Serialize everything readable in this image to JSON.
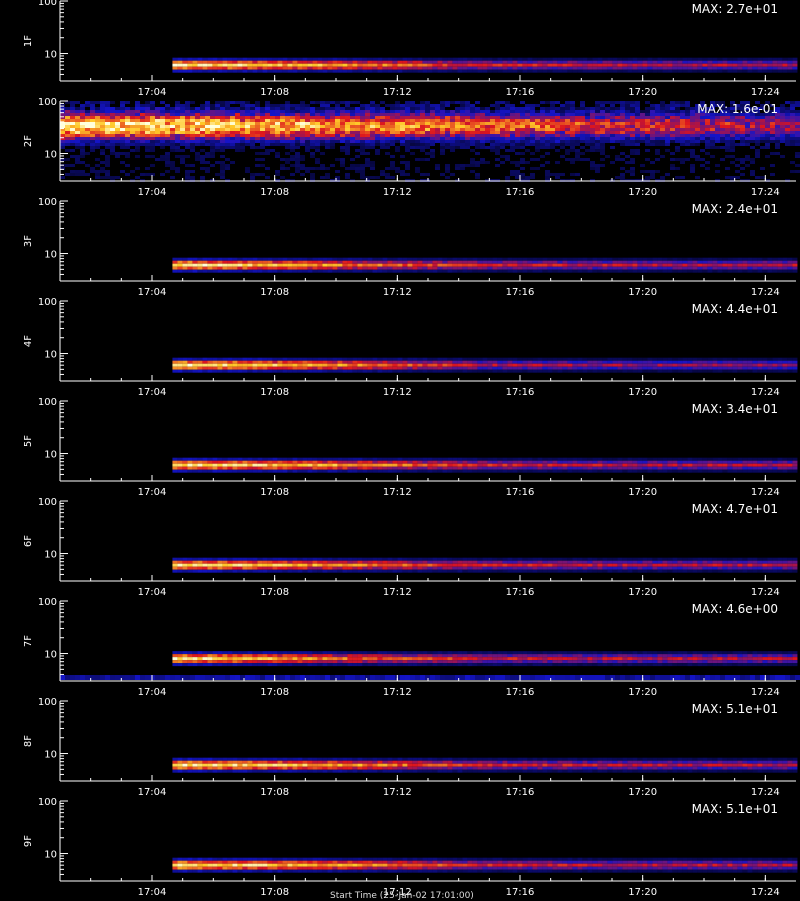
{
  "figure": {
    "footer_text": "Start Time (25-Jan-02 17:01:00)"
  },
  "chart_data": [
    {
      "type": "heatmap",
      "panel_label": "1F",
      "max_label": "MAX: 2.7e+01",
      "y_ticks": [
        "100",
        "10"
      ],
      "x_ticks": [
        "17:04",
        "17:08",
        "17:12",
        "17:16",
        "17:20",
        "17:24"
      ],
      "xlim": [
        "17:01",
        "17:25"
      ],
      "ylim": [
        3,
        100
      ],
      "y_scale": "log",
      "signal": {
        "start": "17:04:40",
        "band_center": 6,
        "intensity": [
          1.0,
          0.8,
          0.55,
          0.5
        ]
      }
    },
    {
      "type": "heatmap",
      "panel_label": "2F",
      "max_label": "MAX: 1.6e-01",
      "y_ticks": [
        "100",
        "10"
      ],
      "x_ticks": [
        "17:04",
        "17:08",
        "17:12",
        "17:16",
        "17:20",
        "17:24"
      ],
      "xlim": [
        "17:01",
        "17:25"
      ],
      "ylim": [
        3,
        100
      ],
      "y_scale": "log",
      "signal": {
        "start": "17:01:00",
        "band_center": 35,
        "intensity": [
          1.0,
          0.6,
          0.45,
          0.4
        ]
      }
    },
    {
      "type": "heatmap",
      "panel_label": "3F",
      "max_label": "MAX: 2.4e+01",
      "y_ticks": [
        "100",
        "10"
      ],
      "x_ticks": [
        "17:04",
        "17:08",
        "17:12",
        "17:16",
        "17:20",
        "17:24"
      ],
      "xlim": [
        "17:01",
        "17:25"
      ],
      "ylim": [
        3,
        100
      ],
      "y_scale": "log",
      "signal": {
        "start": "17:04:40",
        "band_center": 6,
        "intensity": [
          1.0,
          0.75,
          0.55,
          0.5
        ]
      }
    },
    {
      "type": "heatmap",
      "panel_label": "4F",
      "max_label": "MAX: 4.4e+01",
      "y_ticks": [
        "100",
        "10"
      ],
      "x_ticks": [
        "17:04",
        "17:08",
        "17:12",
        "17:16",
        "17:20",
        "17:24"
      ],
      "xlim": [
        "17:01",
        "17:25"
      ],
      "ylim": [
        3,
        100
      ],
      "y_scale": "log",
      "signal": {
        "start": "17:04:40",
        "band_center": 6,
        "intensity": [
          1.0,
          0.8,
          0.5,
          0.45
        ]
      }
    },
    {
      "type": "heatmap",
      "panel_label": "5F",
      "max_label": "MAX: 3.4e+01",
      "y_ticks": [
        "100",
        "10"
      ],
      "x_ticks": [
        "17:04",
        "17:08",
        "17:12",
        "17:16",
        "17:20",
        "17:24"
      ],
      "xlim": [
        "17:01",
        "17:25"
      ],
      "ylim": [
        3,
        100
      ],
      "y_scale": "log",
      "signal": {
        "start": "17:04:40",
        "band_center": 6,
        "intensity": [
          1.0,
          0.8,
          0.55,
          0.5
        ]
      }
    },
    {
      "type": "heatmap",
      "panel_label": "6F",
      "max_label": "MAX: 4.7e+01",
      "y_ticks": [
        "100",
        "10"
      ],
      "x_ticks": [
        "17:04",
        "17:08",
        "17:12",
        "17:16",
        "17:20",
        "17:24"
      ],
      "xlim": [
        "17:01",
        "17:25"
      ],
      "ylim": [
        3,
        100
      ],
      "y_scale": "log",
      "signal": {
        "start": "17:04:40",
        "band_center": 6,
        "intensity": [
          1.0,
          0.75,
          0.55,
          0.5
        ]
      }
    },
    {
      "type": "heatmap",
      "panel_label": "7F",
      "max_label": "MAX: 4.6e+00",
      "y_ticks": [
        "100",
        "10"
      ],
      "x_ticks": [
        "17:04",
        "17:08",
        "17:12",
        "17:16",
        "17:20",
        "17:24"
      ],
      "xlim": [
        "17:01",
        "17:25"
      ],
      "ylim": [
        3,
        100
      ],
      "y_scale": "log",
      "signal": {
        "start": "17:04:40",
        "band_center": 8,
        "intensity": [
          1.0,
          0.7,
          0.55,
          0.5
        ]
      }
    },
    {
      "type": "heatmap",
      "panel_label": "8F",
      "max_label": "MAX: 5.1e+01",
      "y_ticks": [
        "100",
        "10"
      ],
      "x_ticks": [
        "17:04",
        "17:08",
        "17:12",
        "17:16",
        "17:20",
        "17:24"
      ],
      "xlim": [
        "17:01",
        "17:25"
      ],
      "ylim": [
        3,
        100
      ],
      "y_scale": "log",
      "signal": {
        "start": "17:04:40",
        "band_center": 6,
        "intensity": [
          1.0,
          0.8,
          0.55,
          0.5
        ]
      }
    },
    {
      "type": "heatmap",
      "panel_label": "9F",
      "max_label": "MAX: 5.1e+01",
      "y_ticks": [
        "100",
        "10"
      ],
      "x_ticks": [
        "17:04",
        "17:08",
        "17:12",
        "17:16",
        "17:20",
        "17:24"
      ],
      "xlim": [
        "17:01",
        "17:25"
      ],
      "ylim": [
        3,
        100
      ],
      "y_scale": "log",
      "signal": {
        "start": "17:04:40",
        "band_center": 6,
        "intensity": [
          1.0,
          0.8,
          0.55,
          0.5
        ]
      }
    }
  ]
}
